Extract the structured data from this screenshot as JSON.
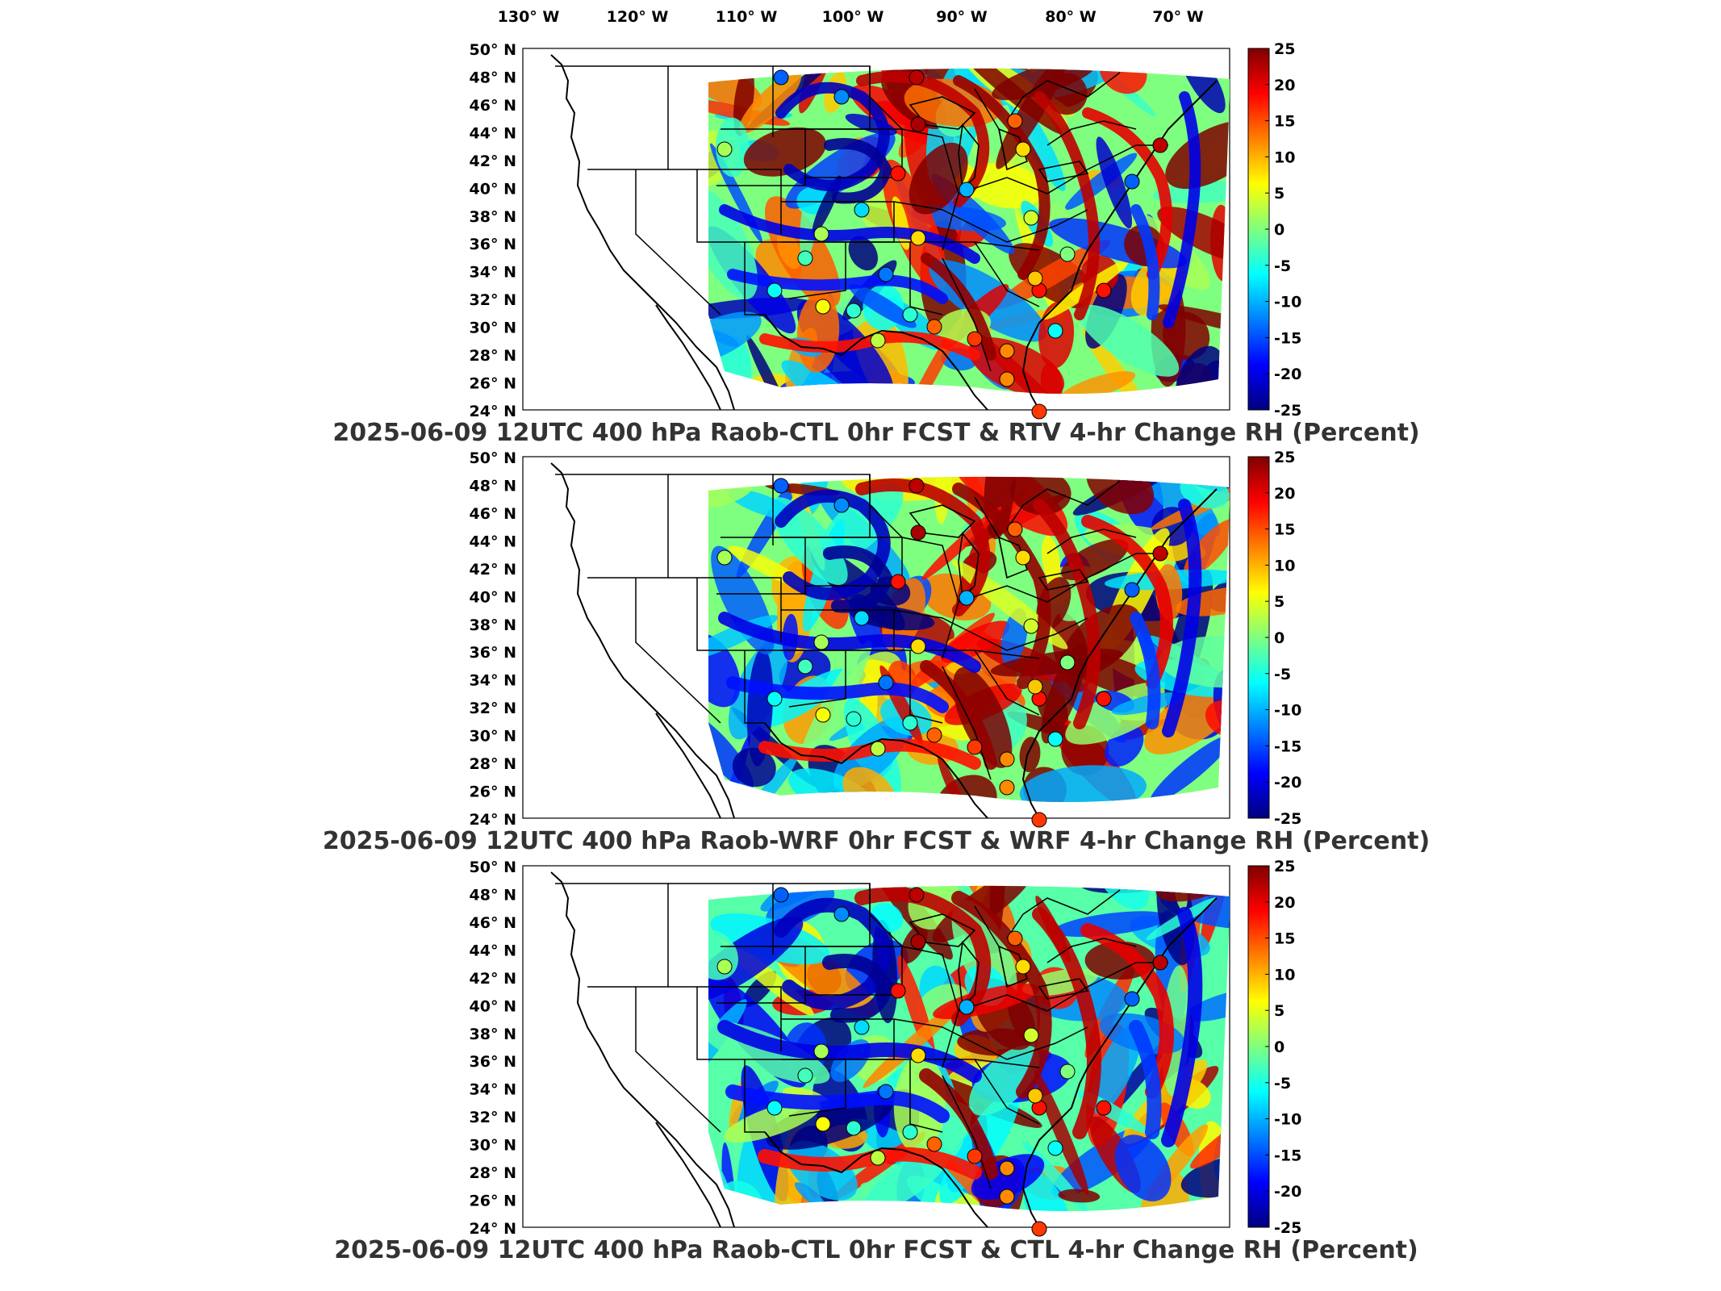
{
  "figure": {
    "top_axis_labels": [
      "130° W",
      "120° W",
      "110° W",
      "100° W",
      "90° W",
      "80° W",
      "70° W"
    ],
    "colorbar_ticks": [
      "25",
      "20",
      "15",
      "10",
      "5",
      "0",
      "-5",
      "-10",
      "-15",
      "-20",
      "-25"
    ],
    "panels": [
      {
        "id": "panel-1",
        "title": "2025-06-09 12UTC 400 hPa Raob-CTL 0hr FCST & RTV 4-hr Change RH (Percent)",
        "lat_labels": [
          "50° N",
          "48° N",
          "46° N",
          "44° N",
          "42° N",
          "40° N",
          "38° N",
          "36° N",
          "34° N",
          "32° N",
          "30° N",
          "28° N",
          "26° N",
          "24° N"
        ]
      },
      {
        "id": "panel-2",
        "title": "2025-06-09 12UTC 400 hPa Raob-WRF 0hr FCST & WRF 4-hr Change RH (Percent)",
        "lat_labels": [
          "50° N",
          "48° N",
          "46° N",
          "44° N",
          "42° N",
          "40° N",
          "38° N",
          "36° N",
          "34° N",
          "32° N",
          "30° N",
          "28° N",
          "26° N",
          "24° N"
        ]
      },
      {
        "id": "panel-3",
        "title": "2025-06-09 12UTC 400 hPa Raob-CTL 0hr FCST & CTL 4-hr Change RH (Percent)",
        "lat_labels": [
          "50° N",
          "48° N",
          "46° N",
          "44° N",
          "42° N",
          "40° N",
          "38° N",
          "36° N",
          "34° N",
          "32° N",
          "30° N",
          "28° N",
          "26° N",
          "24° N"
        ]
      }
    ],
    "colormap": [
      "#00007f",
      "#0000ff",
      "#007fff",
      "#00ffff",
      "#7fff7f",
      "#ffff00",
      "#ff7f00",
      "#ff0000",
      "#7f0000"
    ],
    "color_range": [
      -25,
      25
    ]
  }
}
